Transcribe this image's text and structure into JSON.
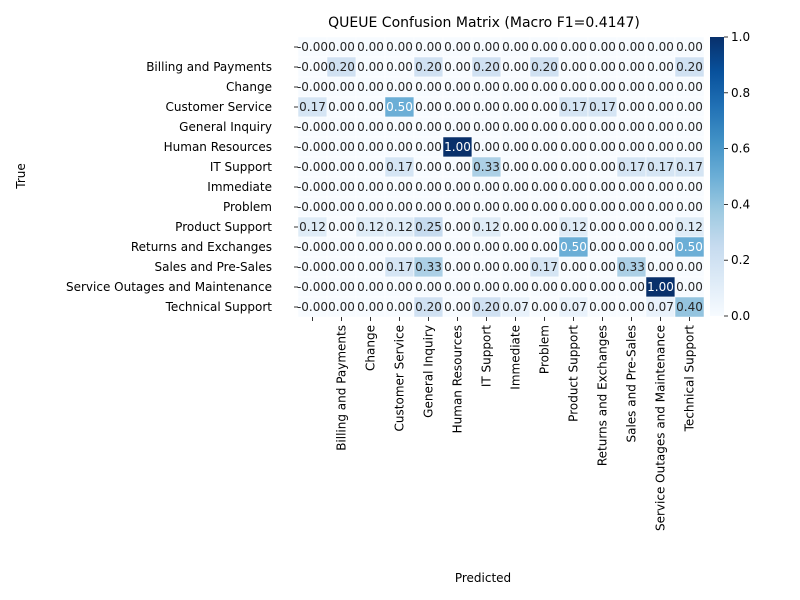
{
  "chart_data": {
    "type": "heatmap",
    "title": "QUEUE Confusion Matrix (Macro F1=0.4147)",
    "xlabel": "Predicted",
    "ylabel": "True",
    "row_labels": [
      "",
      "Billing and Payments",
      "Change",
      "Customer Service",
      "General Inquiry",
      "Human Resources",
      "IT Support",
      "Immediate",
      "Problem",
      "Product Support",
      "Returns and Exchanges",
      "Sales and Pre-Sales",
      "Service Outages and Maintenance",
      "Technical Support"
    ],
    "col_labels": [
      "",
      "Billing and Payments",
      "Change",
      "Customer Service",
      "General Inquiry",
      "Human Resources",
      "IT Support",
      "Immediate",
      "Problem",
      "Product Support",
      "Returns and Exchanges",
      "Sales and Pre-Sales",
      "Service Outages and Maintenance",
      "Technical Support"
    ],
    "values": [
      [
        0,
        0,
        0,
        0,
        0,
        0,
        0,
        0,
        0,
        0,
        0,
        0,
        0,
        0
      ],
      [
        0,
        0.2,
        0,
        0,
        0.2,
        0,
        0.2,
        0,
        0.2,
        0,
        0,
        0,
        0,
        0.2
      ],
      [
        0,
        0,
        0,
        0,
        0,
        0,
        0,
        0,
        0,
        0,
        0,
        0,
        0,
        0
      ],
      [
        0.17,
        0,
        0,
        0.5,
        0,
        0,
        0,
        0,
        0,
        0.17,
        0.17,
        0,
        0,
        0
      ],
      [
        0,
        0,
        0,
        0,
        0,
        0,
        0,
        0,
        0,
        0,
        0,
        0,
        0,
        0
      ],
      [
        0,
        0,
        0,
        0,
        0,
        1.0,
        0,
        0,
        0,
        0,
        0,
        0,
        0,
        0
      ],
      [
        0,
        0,
        0,
        0.17,
        0,
        0,
        0.33,
        0,
        0,
        0,
        0,
        0.17,
        0.17,
        0.17
      ],
      [
        0,
        0,
        0,
        0,
        0,
        0,
        0,
        0,
        0,
        0,
        0,
        0,
        0,
        0
      ],
      [
        0,
        0,
        0,
        0,
        0,
        0,
        0,
        0,
        0,
        0,
        0,
        0,
        0,
        0
      ],
      [
        0.12,
        0,
        0.12,
        0.12,
        0.25,
        0,
        0.12,
        0,
        0,
        0.12,
        0,
        0,
        0,
        0.12
      ],
      [
        0,
        0,
        0,
        0,
        0,
        0,
        0,
        0,
        0,
        0.5,
        0,
        0,
        0,
        0.5
      ],
      [
        0,
        0,
        0,
        0.17,
        0.33,
        0,
        0,
        0,
        0.17,
        0,
        0,
        0.33,
        0,
        0
      ],
      [
        0,
        0,
        0,
        0,
        0,
        0,
        0,
        0,
        0,
        0,
        0,
        0,
        1.0,
        0
      ],
      [
        0,
        0,
        0,
        0,
        0.2,
        0,
        0.2,
        0.07,
        0,
        0.07,
        0,
        0,
        0.07,
        0.4
      ]
    ],
    "value_format": "2 decimals",
    "negative_zero_cells": [
      [
        0,
        0
      ],
      [
        1,
        0
      ],
      [
        2,
        0
      ],
      [
        4,
        0
      ],
      [
        5,
        0
      ],
      [
        6,
        0
      ],
      [
        7,
        0
      ],
      [
        8,
        0
      ],
      [
        10,
        0
      ],
      [
        11,
        0
      ],
      [
        12,
        0
      ],
      [
        13,
        0
      ]
    ],
    "colormap": "Blues",
    "vmin": 0,
    "vmax": 1,
    "colorbar_ticks": [
      "0.0",
      "0.2",
      "0.4",
      "0.6",
      "0.8",
      "1.0"
    ],
    "grid": false,
    "legend": "colorbar-right"
  }
}
